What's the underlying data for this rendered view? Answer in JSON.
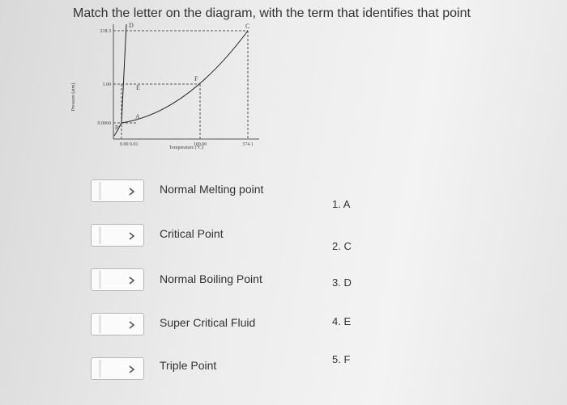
{
  "question": "Match the letter on the diagram, with the term that identifies that point",
  "diagram": {
    "y_axis_label": "Pressure (atm)",
    "x_axis_label": "Temperature (°C)",
    "y_ticks": [
      "218.3",
      "1.00",
      "0.0060"
    ],
    "x_ticks": [
      "0.00 0.01",
      "100.00",
      "374.1"
    ],
    "points": [
      "D",
      "C",
      "E",
      "F",
      "A",
      "B"
    ]
  },
  "terms": [
    "Normal Melting point",
    "Critical Point",
    "Normal Boiling Point",
    "Super Critical Fluid",
    "Triple Point"
  ],
  "options": [
    "1.  A",
    "2.  C",
    "3.  D",
    "4.  E",
    "5.  F"
  ]
}
